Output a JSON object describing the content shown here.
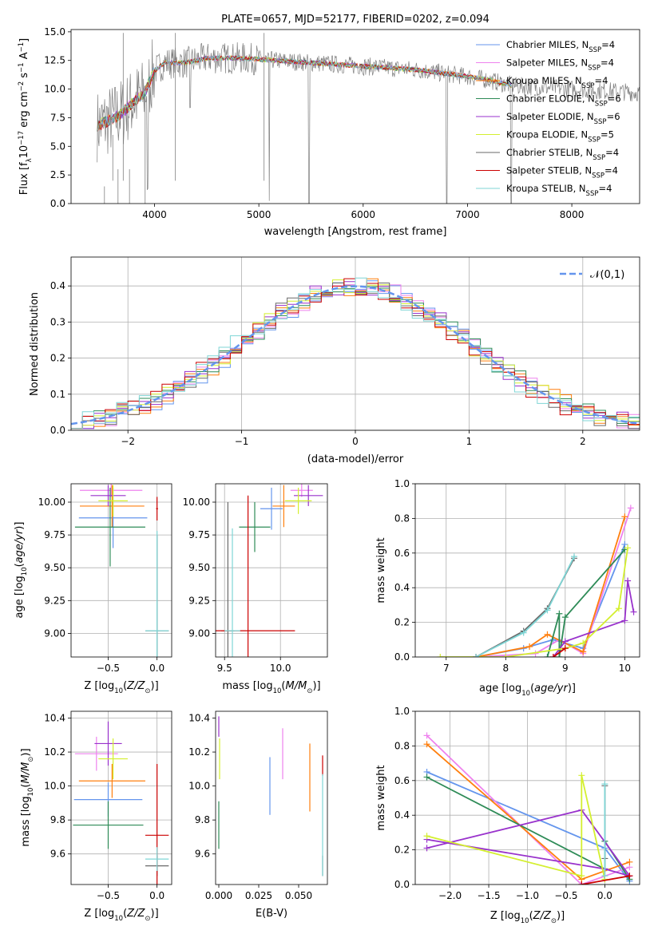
{
  "colors": {
    "chabrier_miles": "#6495ed",
    "salpeter_miles": "#ee82ee",
    "kroupa_miles": "#ff7f0e",
    "chabrier_elodie": "#2e8b57",
    "salpeter_elodie": "#9932cc",
    "kroupa_elodie": "#d4ef2f",
    "chabrier_stelib": "#696969",
    "salpeter_stelib": "#cc0000",
    "kroupa_stelib": "#7fd6d6",
    "normal_curve": "#6495ed"
  },
  "chart_data": [
    {
      "id": "spectrum",
      "type": "line",
      "title": "PLATE=0657, MJD=52177, FIBERID=0202, z=0.094",
      "xlabel": "wavelength [Angstrom, rest frame]",
      "ylabel": "Flux [f_λ10^{-17} erg cm^{-2} s^{-1} A^{-1}]",
      "xlim": [
        3200,
        8650
      ],
      "ylim": [
        0,
        15.2
      ],
      "xticks": [
        4000,
        5000,
        6000,
        7000,
        8000
      ],
      "yticks": [
        0.0,
        2.5,
        5.0,
        7.5,
        10.0,
        12.5,
        15.0
      ],
      "grid": false,
      "legend_position": "top-right",
      "legend": [
        {
          "label": "Chabrier MILES, N",
          "sub": "SSP",
          "tail": "=4",
          "color_key": "chabrier_miles"
        },
        {
          "label": "Salpeter MILES, N",
          "sub": "SSP",
          "tail": "=4",
          "color_key": "salpeter_miles"
        },
        {
          "label": "Kroupa MILES, N",
          "sub": "SSP",
          "tail": "=4",
          "color_key": "kroupa_miles"
        },
        {
          "label": "Chabrier ELODIE, N",
          "sub": "SSP",
          "tail": "=6",
          "color_key": "chabrier_elodie"
        },
        {
          "label": "Salpeter ELODIE, N",
          "sub": "SSP",
          "tail": "=6",
          "color_key": "salpeter_elodie"
        },
        {
          "label": "Kroupa ELODIE, N",
          "sub": "SSP",
          "tail": "=5",
          "color_key": "kroupa_elodie"
        },
        {
          "label": "Chabrier STELIB, N",
          "sub": "SSP",
          "tail": "=4",
          "color_key": "chabrier_stelib"
        },
        {
          "label": "Salpeter STELIB, N",
          "sub": "SSP",
          "tail": "=4",
          "color_key": "salpeter_stelib"
        },
        {
          "label": "Kroupa STELIB, N",
          "sub": "SSP",
          "tail": "=4",
          "color_key": "kroupa_stelib"
        }
      ],
      "model_continuum": {
        "x": [
          3450,
          3600,
          3700,
          3800,
          3900,
          4000,
          4100,
          4300,
          4500,
          4800,
          5000,
          5500,
          6000,
          6500,
          7000,
          7200,
          7420
        ],
        "y": [
          6.8,
          7.4,
          8.0,
          8.9,
          9.6,
          11.6,
          12.3,
          12.3,
          12.7,
          12.7,
          12.6,
          12.3,
          12.0,
          11.7,
          11.1,
          10.8,
          10.3
        ]
      },
      "absorption_features": [
        {
          "x": 3934,
          "depth": 9.0
        },
        {
          "x": 4340,
          "depth": 4.0
        },
        {
          "x": 5100,
          "depth": 12.3
        },
        {
          "x": 5480,
          "depth": 12.3
        },
        {
          "x": 6800,
          "depth": 11.7
        },
        {
          "x": 7420,
          "depth": 10.3
        }
      ]
    },
    {
      "id": "residual_hist",
      "type": "histogram",
      "xlabel": "(data-model)/error",
      "ylabel": "Normed distribution",
      "xlim": [
        -2.5,
        2.5
      ],
      "ylim": [
        0,
        0.48
      ],
      "xticks": [
        -2,
        -1,
        0,
        1,
        2
      ],
      "yticks": [
        0.0,
        0.1,
        0.2,
        0.3,
        0.4
      ],
      "grid": true,
      "legend_position": "top-right",
      "normal_curve": {
        "label": "𝒩(0,1)",
        "mean": 0,
        "sigma": 1
      }
    },
    {
      "id": "age_vs_Z",
      "type": "errorbar",
      "xlabel": "Z [log10(Z/Z⊙)]",
      "ylabel": "age  [log10(age/yr)]",
      "xlim": [
        -0.88,
        0.15
      ],
      "ylim": [
        8.82,
        10.14
      ],
      "xticks": [
        -0.5,
        0.0
      ],
      "yticks": [
        9.0,
        9.25,
        9.5,
        9.75,
        10.0
      ],
      "grid": true,
      "points": [
        {
          "color_key": "chabrier_miles",
          "x": -0.45,
          "xerr": 0.35,
          "y": 9.88,
          "yerr": 0.23
        },
        {
          "color_key": "salpeter_miles",
          "x": -0.47,
          "xerr": 0.32,
          "y": 10.09,
          "yerr": 0.05
        },
        {
          "color_key": "kroupa_miles",
          "x": -0.46,
          "xerr": 0.33,
          "y": 9.97,
          "yerr": 0.16
        },
        {
          "color_key": "chabrier_elodie",
          "x": -0.48,
          "xerr": 0.36,
          "y": 9.81,
          "yerr": 0.3
        },
        {
          "color_key": "salpeter_elodie",
          "x": -0.5,
          "xerr": 0.18,
          "y": 10.05,
          "yerr": 0.08
        },
        {
          "color_key": "kroupa_elodie",
          "x": -0.45,
          "xerr": 0.15,
          "y": 10.01,
          "yerr": 0.12
        },
        {
          "color_key": "chabrier_stelib",
          "x": 0.0,
          "xerr": 0.12,
          "y": 9.02,
          "yerr": 0.73
        },
        {
          "color_key": "salpeter_stelib",
          "x": 0.0,
          "xerr": 0.01,
          "y": 9.95,
          "yerr": 0.09
        },
        {
          "color_key": "kroupa_stelib",
          "x": 0.0,
          "xerr": 0.12,
          "y": 9.02,
          "yerr": 0.76
        }
      ]
    },
    {
      "id": "age_vs_mass",
      "type": "errorbar",
      "xlabel": "mass [log10(M/M⊙)]",
      "ylabel": "",
      "xlim": [
        9.42,
        10.42
      ],
      "ylim": [
        8.82,
        10.14
      ],
      "xticks": [
        9.5,
        10.0
      ],
      "yticks": [
        9.0,
        9.25,
        9.5,
        9.75,
        10.0
      ],
      "grid": true,
      "points": [
        {
          "color_key": "chabrier_miles",
          "x": 9.92,
          "xerr": 0.1,
          "y": 9.95,
          "yerr": 0.16
        },
        {
          "color_key": "salpeter_miles",
          "x": 10.19,
          "xerr": 0.1,
          "y": 10.09,
          "yerr": 0.05
        },
        {
          "color_key": "kroupa_miles",
          "x": 10.03,
          "xerr": 0.1,
          "y": 9.97,
          "yerr": 0.16
        },
        {
          "color_key": "chabrier_elodie",
          "x": 9.77,
          "xerr": 0.14,
          "y": 9.81,
          "yerr": 0.19
        },
        {
          "color_key": "salpeter_elodie",
          "x": 10.25,
          "xerr": 0.13,
          "y": 10.05,
          "yerr": 0.08
        },
        {
          "color_key": "kroupa_elodie",
          "x": 10.16,
          "xerr": 0.12,
          "y": 10.01,
          "yerr": 0.1
        },
        {
          "color_key": "chabrier_stelib",
          "x": 9.53,
          "xerr": 0.06,
          "y": 9.02,
          "yerr": 0.98
        },
        {
          "color_key": "salpeter_stelib",
          "x": 9.71,
          "xerr": 0.42,
          "y": 9.02,
          "yerr": 1.03
        },
        {
          "color_key": "kroupa_stelib",
          "x": 9.57,
          "xerr": 0.07,
          "y": 9.02,
          "yerr": 0.78
        }
      ]
    },
    {
      "id": "mass_weight_vs_age",
      "type": "line",
      "xlabel": "age  [log10(age/yr)]",
      "ylabel": "mass weight",
      "xlim": [
        6.48,
        10.25
      ],
      "ylim": [
        0,
        1.0
      ],
      "xticks": [
        7,
        8,
        9,
        10
      ],
      "yticks": [
        0.0,
        0.2,
        0.4,
        0.6,
        0.8,
        1.0
      ],
      "grid": true,
      "series": [
        {
          "color_key": "chabrier_miles",
          "x": [
            7.5,
            8.3,
            8.8,
            9.3,
            10.0
          ],
          "y": [
            0.0,
            0.05,
            0.1,
            0.05,
            0.65
          ]
        },
        {
          "color_key": "salpeter_miles",
          "x": [
            7.5,
            8.5,
            8.9,
            9.3,
            10.1
          ],
          "y": [
            0.0,
            0.02,
            0.1,
            0.02,
            0.86
          ]
        },
        {
          "color_key": "kroupa_miles",
          "x": [
            7.5,
            8.4,
            8.7,
            9.3,
            10.0
          ],
          "y": [
            0.0,
            0.06,
            0.13,
            0.03,
            0.81
          ]
        },
        {
          "color_key": "chabrier_elodie",
          "x": [
            8.7,
            8.9,
            8.9,
            9.0,
            10.0
          ],
          "y": [
            0.0,
            0.25,
            0.0,
            0.23,
            0.62
          ]
        },
        {
          "color_key": "salpeter_elodie",
          "x": [
            8.8,
            9.0,
            10.0,
            10.05,
            10.15
          ],
          "y": [
            0.0,
            0.09,
            0.21,
            0.44,
            0.26
          ]
        },
        {
          "color_key": "kroupa_elodie",
          "x": [
            6.9,
            8.0,
            9.0,
            9.3,
            9.9,
            10.05
          ],
          "y": [
            0.0,
            0.0,
            0.05,
            0.08,
            0.28,
            0.63
          ]
        },
        {
          "color_key": "chabrier_stelib",
          "x": [
            7.5,
            8.3,
            8.7,
            9.15
          ],
          "y": [
            0.0,
            0.15,
            0.28,
            0.57
          ]
        },
        {
          "color_key": "salpeter_stelib",
          "x": [
            8.8,
            9.0
          ],
          "y": [
            0.0,
            0.05
          ]
        },
        {
          "color_key": "kroupa_stelib",
          "x": [
            7.5,
            8.3,
            8.7,
            9.15
          ],
          "y": [
            0.0,
            0.14,
            0.27,
            0.58
          ]
        }
      ]
    },
    {
      "id": "mass_vs_Z",
      "type": "errorbar",
      "xlabel": "Z [log10(Z/Z⊙)]",
      "ylabel": "mass [log10(M/M⊙)]",
      "xlim": [
        -0.88,
        0.15
      ],
      "ylim": [
        9.42,
        10.44
      ],
      "xticks": [
        -0.5,
        0.0
      ],
      "yticks": [
        9.6,
        9.8,
        10.0,
        10.2,
        10.4
      ],
      "grid": true,
      "points": [
        {
          "color_key": "chabrier_miles",
          "x": -0.5,
          "xerr": 0.35,
          "y": 9.92,
          "yerr": 0.1
        },
        {
          "color_key": "salpeter_miles",
          "x": -0.62,
          "xerr": 0.22,
          "y": 10.19,
          "yerr": 0.1
        },
        {
          "color_key": "kroupa_miles",
          "x": -0.46,
          "xerr": 0.34,
          "y": 10.03,
          "yerr": 0.1
        },
        {
          "color_key": "chabrier_elodie",
          "x": -0.5,
          "xerr": 0.36,
          "y": 9.77,
          "yerr": 0.14
        },
        {
          "color_key": "salpeter_elodie",
          "x": -0.5,
          "xerr": 0.14,
          "y": 10.25,
          "yerr": 0.13
        },
        {
          "color_key": "kroupa_elodie",
          "x": -0.45,
          "xerr": 0.15,
          "y": 10.16,
          "yerr": 0.12
        },
        {
          "color_key": "chabrier_stelib",
          "x": 0.0,
          "xerr": 0.12,
          "y": 9.53,
          "yerr": 0.06
        },
        {
          "color_key": "salpeter_stelib",
          "x": 0.0,
          "xerr": 0.12,
          "y": 9.71,
          "yerr": 0.42
        },
        {
          "color_key": "kroupa_stelib",
          "x": 0.0,
          "xerr": 0.12,
          "y": 9.57,
          "yerr": 0.07
        }
      ]
    },
    {
      "id": "mass_vs_ebv",
      "type": "errorbar",
      "xlabel": "E(B-V)",
      "ylabel": "",
      "xlim": [
        -0.002,
        0.068
      ],
      "ylim": [
        9.42,
        10.44
      ],
      "xticks": [
        0.0,
        0.025,
        0.05
      ],
      "xtick_labels": [
        "0.000",
        "0.025",
        "0.050"
      ],
      "yticks": [
        9.6,
        9.8,
        10.0,
        10.2,
        10.4
      ],
      "grid": false,
      "points": [
        {
          "color_key": "chabrier_miles",
          "x": 0.032,
          "xerr": 0,
          "y": 10.0,
          "yerr": 0.17
        },
        {
          "color_key": "salpeter_miles",
          "x": 0.04,
          "xerr": 0,
          "y": 10.19,
          "yerr": 0.15
        },
        {
          "color_key": "kroupa_miles",
          "x": 0.057,
          "xerr": 0,
          "y": 10.05,
          "yerr": 0.2
        },
        {
          "color_key": "chabrier_elodie",
          "x": 0.0,
          "xerr": 0,
          "y": 9.77,
          "yerr": 0.14
        },
        {
          "color_key": "salpeter_elodie",
          "x": 0.0,
          "xerr": 0,
          "y": 10.35,
          "yerr": 0.06
        },
        {
          "color_key": "kroupa_elodie",
          "x": 0.0005,
          "xerr": 0,
          "y": 10.16,
          "yerr": 0.12
        },
        {
          "color_key": "chabrier_stelib",
          "x": 0.065,
          "xerr": 0,
          "y": 9.53,
          "yerr": 0.06
        },
        {
          "color_key": "salpeter_stelib",
          "x": 0.065,
          "xerr": 0,
          "y": 10.12,
          "yerr": 0.06
        },
        {
          "color_key": "kroupa_stelib",
          "x": 0.065,
          "xerr": 0,
          "y": 9.77,
          "yerr": 0.3
        }
      ]
    },
    {
      "id": "mass_weight_vs_Z",
      "type": "line",
      "xlabel": "Z [log10(Z/Z⊙)]",
      "ylabel": "mass weight",
      "xlim": [
        -2.45,
        0.45
      ],
      "ylim": [
        0,
        1.0
      ],
      "xticks": [
        -2.0,
        -1.5,
        -1.0,
        -0.5,
        0.0
      ],
      "yticks": [
        0.0,
        0.2,
        0.4,
        0.6,
        0.8,
        1.0
      ],
      "grid": true,
      "series": [
        {
          "color_key": "chabrier_miles",
          "x": [
            -2.3,
            0.0,
            0.32
          ],
          "y": [
            0.65,
            0.21,
            0.02
          ]
        },
        {
          "color_key": "salpeter_miles",
          "x": [
            -2.3,
            -0.3,
            0.32
          ],
          "y": [
            0.86,
            0.0,
            0.1
          ]
        },
        {
          "color_key": "kroupa_miles",
          "x": [
            -2.3,
            -0.3,
            0.32
          ],
          "y": [
            0.81,
            0.03,
            0.13
          ]
        },
        {
          "color_key": "chabrier_elodie",
          "x": [
            -2.3,
            0.0,
            0.0,
            0.32
          ],
          "y": [
            0.62,
            0.09,
            0.25,
            0.03
          ]
        },
        {
          "color_key": "salpeter_elodie",
          "x": [
            -2.3,
            0.0,
            0.32,
            -0.3,
            -2.3
          ],
          "y": [
            0.26,
            0.09,
            0.05,
            0.43,
            0.21
          ]
        },
        {
          "color_key": "kroupa_elodie",
          "x": [
            -2.3,
            -0.3,
            -0.3,
            0.0
          ],
          "y": [
            0.28,
            0.05,
            0.63,
            0.03
          ]
        },
        {
          "color_key": "chabrier_stelib",
          "x": [
            0.0,
            0.0
          ],
          "y": [
            0.15,
            0.57
          ]
        },
        {
          "color_key": "salpeter_stelib",
          "x": [
            -0.3,
            0.32
          ],
          "y": [
            0.0,
            0.05
          ]
        },
        {
          "color_key": "kroupa_stelib",
          "x": [
            0.0,
            0.0
          ],
          "y": [
            0.05,
            0.58
          ]
        }
      ]
    }
  ]
}
